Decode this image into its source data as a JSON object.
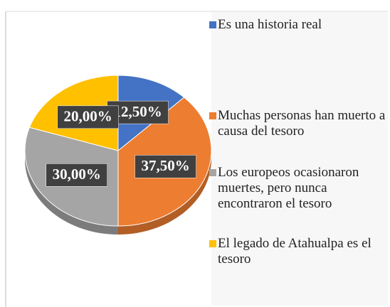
{
  "chart_data": {
    "type": "pie",
    "categories": [
      "Es una historia real",
      "Muchas personas han muerto a causa del tesoro",
      "Los europeos ocasionaron muertes, pero nunca encontraron el tesoro",
      "El legado de Atahualpa es el tesoro"
    ],
    "values": [
      12.5,
      37.5,
      30,
      20
    ],
    "value_labels": [
      "12,50%",
      "37,50%",
      "30,00%",
      "20,00%"
    ],
    "colors": [
      "#4472c4",
      "#ed7d31",
      "#a5a5a5",
      "#ffc000"
    ],
    "legend": "right"
  }
}
